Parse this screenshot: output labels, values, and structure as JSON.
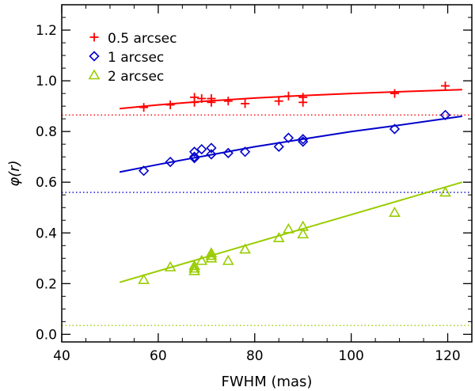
{
  "chart_data": {
    "type": "scatter",
    "title": "",
    "xlabel": "FWHM (mas)",
    "ylabel": "φ(r)",
    "xlim": [
      40,
      125
    ],
    "ylim": [
      -0.03,
      1.3
    ],
    "xticks": [
      40,
      60,
      80,
      100,
      120
    ],
    "xtick_labels": [
      "40",
      "60",
      "80",
      "100",
      "120"
    ],
    "yticks": [
      0.0,
      0.2,
      0.4,
      0.6,
      0.8,
      1.0,
      1.2
    ],
    "ytick_labels": [
      "0.0",
      "0.2",
      "0.4",
      "0.6",
      "0.8",
      "1.0",
      "1.2"
    ],
    "legend_position": "top-left",
    "series": [
      {
        "name": "0.5 arcsec",
        "label": "0.5 arcsec",
        "color": "#ff0000",
        "marker": "plus",
        "x": [
          57,
          62.5,
          67.5,
          67.5,
          69,
          71,
          71,
          74.5,
          78,
          85,
          87,
          90,
          90,
          109,
          119.5
        ],
        "y": [
          0.895,
          0.905,
          0.915,
          0.935,
          0.93,
          0.93,
          0.915,
          0.92,
          0.91,
          0.92,
          0.94,
          0.935,
          0.915,
          0.95,
          0.98
        ],
        "fit": {
          "x_start": 52,
          "x_end": 123,
          "curve": [
            [
              52,
              0.89
            ],
            [
              60,
              0.905
            ],
            [
              70,
              0.92
            ],
            [
              80,
              0.932
            ],
            [
              90,
              0.942
            ],
            [
              100,
              0.95
            ],
            [
              110,
              0.957
            ],
            [
              123,
              0.965
            ]
          ]
        },
        "reference_line": 0.865
      },
      {
        "name": "1 arcsec",
        "label": "1 arcsec",
        "color": "#0000cc",
        "marker": "diamond",
        "x": [
          57,
          62.5,
          67.5,
          67.5,
          67.5,
          69,
          71,
          71,
          74.5,
          78,
          85,
          87,
          90,
          90,
          109,
          119.5
        ],
        "y": [
          0.645,
          0.68,
          0.72,
          0.7,
          0.695,
          0.73,
          0.735,
          0.71,
          0.715,
          0.72,
          0.74,
          0.775,
          0.77,
          0.76,
          0.81,
          0.865
        ],
        "fit": {
          "x_start": 52,
          "x_end": 123,
          "curve": [
            [
              52,
              0.64
            ],
            [
              60,
              0.67
            ],
            [
              70,
              0.705
            ],
            [
              80,
              0.74
            ],
            [
              90,
              0.77
            ],
            [
              100,
              0.8
            ],
            [
              110,
              0.825
            ],
            [
              123,
              0.86
            ]
          ]
        },
        "reference_line": 0.56
      },
      {
        "name": "2 arcsec",
        "label": "2 arcsec",
        "color": "#99cc00",
        "marker": "triangle",
        "x": [
          57,
          62.5,
          67.5,
          67.5,
          67.5,
          69,
          71,
          71,
          71,
          74.5,
          78,
          85,
          87,
          90,
          90,
          109,
          119.5
        ],
        "y": [
          0.215,
          0.265,
          0.27,
          0.25,
          0.26,
          0.29,
          0.32,
          0.3,
          0.31,
          0.29,
          0.335,
          0.38,
          0.415,
          0.425,
          0.395,
          0.48,
          0.56
        ],
        "fit": {
          "x_start": 52,
          "x_end": 123,
          "curve": [
            [
              52,
              0.205
            ],
            [
              123,
              0.6
            ]
          ]
        },
        "reference_line": 0.035
      }
    ]
  }
}
